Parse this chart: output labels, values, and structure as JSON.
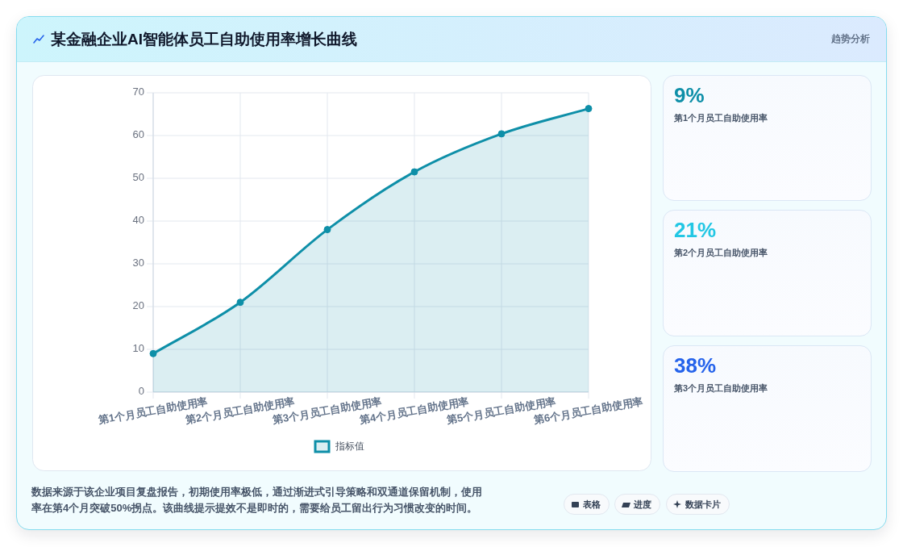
{
  "chart_data": [
    {
      "type": "area",
      "title": "某金融企业AI智能体员工自助使用率增长曲线",
      "categories": [
        "第1个月员工自助使用率",
        "第2个月员工自助使用率",
        "第3个月员工自助使用率",
        "第4个月员工自助使用率",
        "第5个月员工自助使用率",
        "第6个月员工自助使用率"
      ],
      "series": [
        {
          "name": "指标值",
          "color": "#0e8fa8",
          "values": [
            9,
            21,
            38,
            51.5,
            60.4,
            66.3
          ]
        }
      ],
      "ylim": [
        0,
        70
      ],
      "yticks": [
        0,
        10,
        20,
        30,
        40,
        50,
        60,
        70
      ],
      "grid": true,
      "legend": "bottom",
      "marker": "circle",
      "line_style": "solid",
      "annotations": [
        "趋势分析",
        "数据来源于该企业项目复盘报告，初期使用率极低，通过渐进式引导策略和双通道保留机制，使用率在第4个月突破50%拐点。该曲线提示提效不是即时的，需要给员工留出行为习惯改变的时间。",
        "表格",
        "进度",
        "数据卡片"
      ]
    },
    {
      "type": "other",
      "title": "9%",
      "subtitle": "第1个月员工自助使用率"
    },
    {
      "type": "other",
      "title": "21%",
      "subtitle": "第2个月员工自助使用率"
    },
    {
      "type": "other",
      "title": "38%",
      "subtitle": "第3个月员工自助使用率"
    }
  ]
}
